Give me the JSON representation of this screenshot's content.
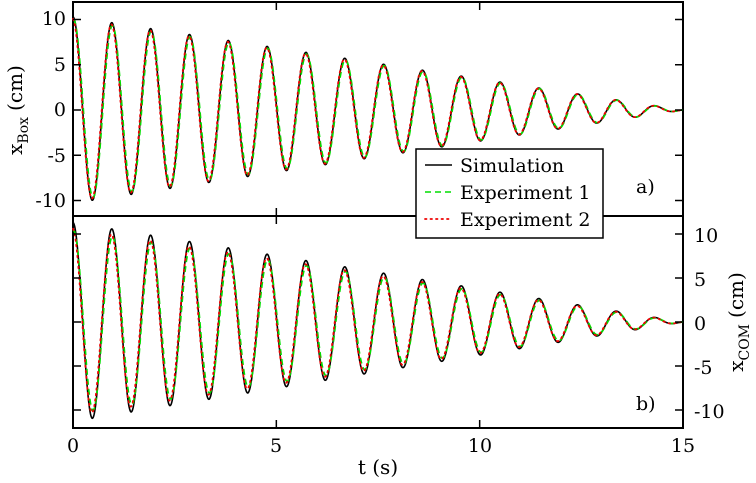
{
  "chart_data": {
    "type": "line",
    "xlabel": "t (s)",
    "xlim": [
      0,
      15
    ],
    "x_ticks": [
      "0",
      "5",
      "10",
      "15"
    ],
    "legend": {
      "placement": "center-right",
      "entries": [
        {
          "name": "Simulation",
          "color": "#000000",
          "style": "solid"
        },
        {
          "name": "Experiment 1",
          "color": "#00dd00",
          "style": "dashed"
        },
        {
          "name": "Experiment 2",
          "color": "#ee0000",
          "style": "dotted"
        }
      ]
    },
    "panels": [
      {
        "tag": "a)",
        "ylabel_main": "x",
        "ylabel_sub": "Box",
        "ylabel_unit": "(cm)",
        "ylabel_side": "left",
        "ylim": [
          -12,
          12
        ],
        "y_ticks": [
          "-10",
          "-5",
          "0",
          "5",
          "10"
        ],
        "y_tick_values": [
          -10,
          -5,
          0,
          5,
          10
        ],
        "signal": {
          "period_s": 0.955,
          "phase_rad": 1.5708,
          "amp_start": 10.3,
          "amp_end": 0.0,
          "t_end": 15.0,
          "x_range": [
            0,
            15
          ]
        },
        "series": [
          {
            "name": "Simulation",
            "amp_scale": 1.0,
            "t_shift": 0.0
          },
          {
            "name": "Experiment 1",
            "amp_scale": 0.97,
            "t_shift": 0.015
          },
          {
            "name": "Experiment 2",
            "amp_scale": 0.98,
            "t_shift": -0.01
          }
        ]
      },
      {
        "tag": "b)",
        "ylabel_main": "x",
        "ylabel_sub": "COM",
        "ylabel_unit": "(cm)",
        "ylabel_side": "right",
        "ylim": [
          -12,
          12
        ],
        "y_ticks": [
          "-10",
          "-5",
          "0",
          "5",
          "10"
        ],
        "y_tick_values": [
          -10,
          -5,
          0,
          5,
          10
        ],
        "signal": {
          "period_s": 0.955,
          "phase_rad": 1.5708,
          "amp_start": 11.3,
          "amp_end": 0.0,
          "t_end": 15.0,
          "x_range": [
            0,
            15
          ]
        },
        "series": [
          {
            "name": "Simulation",
            "amp_scale": 1.0,
            "t_shift": 0.0
          },
          {
            "name": "Experiment 1",
            "amp_scale": 0.92,
            "t_shift": 0.015
          },
          {
            "name": "Experiment 2",
            "amp_scale": 0.94,
            "t_shift": -0.01
          }
        ]
      }
    ]
  }
}
